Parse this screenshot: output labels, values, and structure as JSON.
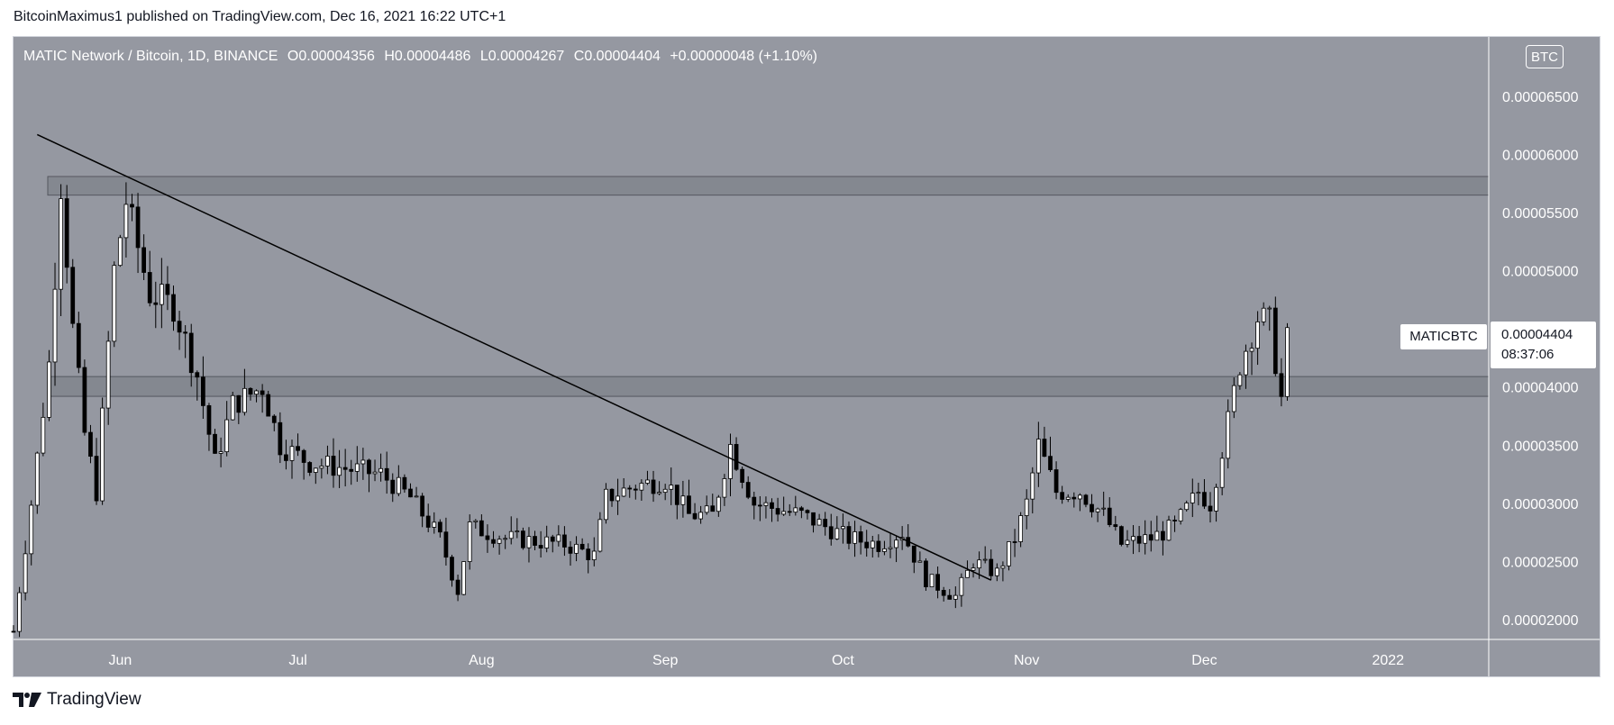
{
  "header": {
    "published_by": "BitcoinMaximus1 published on TradingView.com, Dec 16, 2021 16:22 UTC+1"
  },
  "legend": {
    "symbol": "MATIC Network / Bitcoin, 1D, BINANCE",
    "o_label": "O",
    "o_value": "0.00004356",
    "h_label": "H",
    "h_value": "0.00004486",
    "l_label": "L",
    "l_value": "0.00004267",
    "c_label": "C",
    "c_value": "0.00004404",
    "change": "+0.00000048 (+1.10%)"
  },
  "currency": "BTC",
  "last_price": {
    "symbol": "MATICBTC",
    "price": "0.00004404",
    "countdown": "08:37:06"
  },
  "footer": {
    "brand": "TradingView"
  },
  "colors": {
    "background": "#9598a1",
    "candle_up": "#ffffff",
    "candle_down": "#000000",
    "zone_fill": "#7a7d85",
    "trendline": "#000000",
    "axis_text": "#ffffff"
  },
  "chart_data": {
    "type": "candlestick",
    "x_ticks": [
      "Jun",
      "Jul",
      "Aug",
      "Sep",
      "Oct",
      "Nov",
      "Dec",
      "2022"
    ],
    "y_ticks": [
      "0.00006500",
      "0.00006000",
      "0.00005500",
      "0.00005000",
      "0.00004500",
      "0.00004000",
      "0.00003500",
      "0.00003000",
      "0.00002500",
      "0.00002000"
    ],
    "ylim": [
      1.83e-05,
      7.01e-05
    ],
    "xlim": [
      "2021-05-14",
      "2022-01-18"
    ],
    "zones": [
      {
        "from": 5.65e-05,
        "to": 5.81e-05
      },
      {
        "from": 3.92e-05,
        "to": 4.09e-05
      }
    ],
    "trendline": {
      "start": [
        "2021-05-18",
        6.17e-05
      ],
      "end": [
        "2021-10-26",
        2.34e-05
      ]
    },
    "close_anchors": [
      [
        "2021-05-14",
        1.9e-05
      ],
      [
        "2021-05-17",
        3e-05
      ],
      [
        "2021-05-20",
        4.2e-05
      ],
      [
        "2021-05-22",
        5.75e-05
      ],
      [
        "2021-05-24",
        4.5e-05
      ],
      [
        "2021-05-26",
        3.6e-05
      ],
      [
        "2021-05-28",
        3.1e-05
      ],
      [
        "2021-05-31",
        5e-05
      ],
      [
        "2021-06-02",
        5.6e-05
      ],
      [
        "2021-06-06",
        4.8e-05
      ],
      [
        "2021-06-10",
        4.7e-05
      ],
      [
        "2021-06-14",
        4.1e-05
      ],
      [
        "2021-06-17",
        3.35e-05
      ],
      [
        "2021-06-20",
        3.85e-05
      ],
      [
        "2021-06-25",
        4e-05
      ],
      [
        "2021-06-28",
        3.5e-05
      ],
      [
        "2021-07-03",
        3.35e-05
      ],
      [
        "2021-07-15",
        3.25e-05
      ],
      [
        "2021-07-20",
        3.05e-05
      ],
      [
        "2021-07-25",
        2.7e-05
      ],
      [
        "2021-07-28",
        2.25e-05
      ],
      [
        "2021-07-30",
        2.8e-05
      ],
      [
        "2021-08-05",
        2.7e-05
      ],
      [
        "2021-08-15",
        2.65e-05
      ],
      [
        "2021-08-20",
        2.55e-05
      ],
      [
        "2021-08-22",
        3.05e-05
      ],
      [
        "2021-08-27",
        3.15e-05
      ],
      [
        "2021-09-01",
        3.2e-05
      ],
      [
        "2021-09-05",
        2.9e-05
      ],
      [
        "2021-09-09",
        2.9e-05
      ],
      [
        "2021-09-12",
        3.5e-05
      ],
      [
        "2021-09-16",
        3e-05
      ],
      [
        "2021-09-24",
        2.9e-05
      ],
      [
        "2021-10-02",
        2.7e-05
      ],
      [
        "2021-10-07",
        2.65e-05
      ],
      [
        "2021-10-11",
        2.75e-05
      ],
      [
        "2021-10-15",
        2.35e-05
      ],
      [
        "2021-10-20",
        2.2e-05
      ],
      [
        "2021-10-23",
        2.5e-05
      ],
      [
        "2021-10-27",
        2.4e-05
      ],
      [
        "2021-10-30",
        2.7e-05
      ],
      [
        "2021-11-01",
        3e-05
      ],
      [
        "2021-11-03",
        3.5e-05
      ],
      [
        "2021-11-06",
        3.1e-05
      ],
      [
        "2021-11-10",
        3.1e-05
      ],
      [
        "2021-11-14",
        2.9e-05
      ],
      [
        "2021-11-17",
        2.65e-05
      ],
      [
        "2021-11-22",
        2.7e-05
      ],
      [
        "2021-11-26",
        2.8e-05
      ],
      [
        "2021-11-30",
        3.1e-05
      ],
      [
        "2021-12-02",
        3e-05
      ],
      [
        "2021-12-05",
        3.7e-05
      ],
      [
        "2021-12-07",
        4.2e-05
      ],
      [
        "2021-12-10",
        4.6e-05
      ],
      [
        "2021-12-12",
        4.55e-05
      ],
      [
        "2021-12-14",
        3.9e-05
      ],
      [
        "2021-12-15",
        4.4e-05
      ]
    ]
  }
}
